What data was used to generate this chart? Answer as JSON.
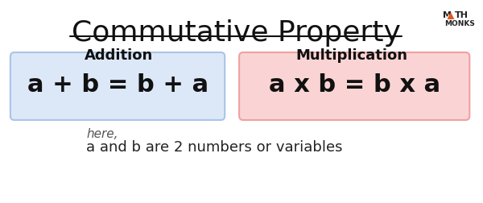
{
  "title": "Commutative Property",
  "title_fontsize": 26,
  "bg_color": "#ffffff",
  "addition_label": "Addition",
  "multiplication_label": "Multiplication",
  "addition_formula": "a + b = b + a",
  "multiplication_formula": "a x b = b x a",
  "addition_box_facecolor": "#dce8f8",
  "addition_box_edgecolor": "#aac4e8",
  "multiplication_box_facecolor": "#fad4d4",
  "multiplication_box_edgecolor": "#f0a0a0",
  "formula_fontsize": 22,
  "label_fontsize": 13,
  "note_italic": "here,",
  "note_main": "a and b are 2 numbers or variables",
  "note_fontsize": 13,
  "logo_monks": "MONKS",
  "logo_color_text": "#222222",
  "logo_color_triangle": "#e05a20"
}
